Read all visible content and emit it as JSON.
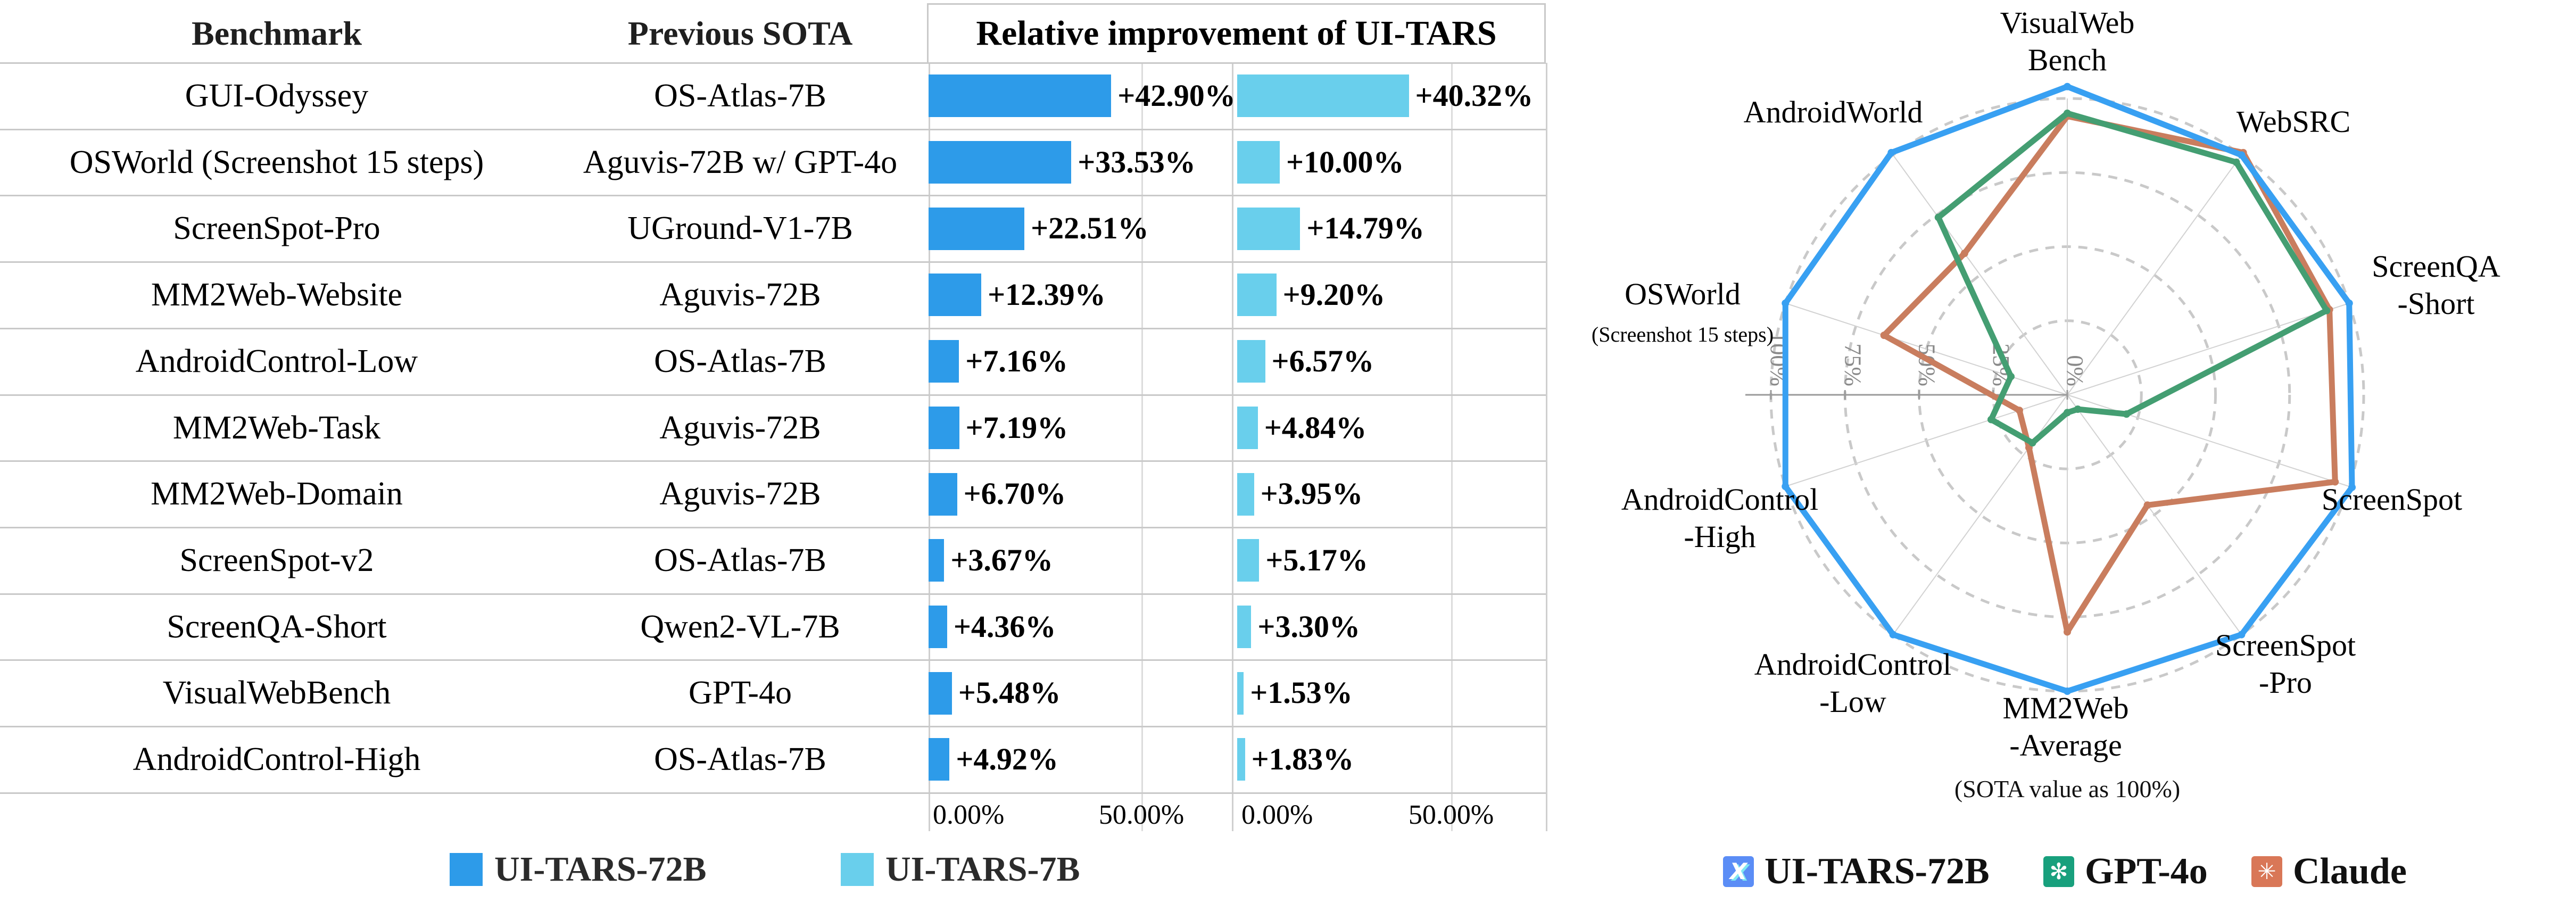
{
  "figure_title": "Relative improvement of UI-TARS",
  "left_table": {
    "headers": {
      "benchmark": "Benchmark",
      "previous_sota": "Previous SOTA",
      "improvement": "Relative improvement of UI-TARS"
    },
    "axis_tick_zero": "0.00%",
    "axis_tick_fifty": "50.00%",
    "legend": [
      {
        "label": "UI-TARS-72B",
        "color": "#2D9BE9"
      },
      {
        "label": "UI-TARS-7B",
        "color": "#69CFEC"
      }
    ]
  },
  "radar_panel": {
    "subtitle": "(SOTA value as 100%)",
    "tick_labels": [
      "100%",
      "75%",
      "50%",
      "25%",
      "0%"
    ],
    "legend": [
      {
        "label": "UI-TARS-72B",
        "color": "#5B8DF6",
        "icon": "uitars-logo",
        "glyph": "X"
      },
      {
        "label": "GPT-4o",
        "color": "#18A07D",
        "icon": "openai-logo",
        "glyph": "✻"
      },
      {
        "label": "Claude",
        "color": "#D97757",
        "icon": "claude-logo",
        "glyph": "✳"
      }
    ]
  },
  "chart_data": [
    {
      "type": "bar",
      "title": "Relative improvement of UI-TARS",
      "orientation": "horizontal",
      "xlim": [
        0,
        50
      ],
      "x_ticks": [
        "0.00%",
        "50.00%"
      ],
      "grid": true,
      "categories": [
        "GUI-Odyssey",
        "OSWorld (Screenshot 15 steps)",
        "ScreenSpot-Pro",
        "MM2Web-Website",
        "AndroidControl-Low",
        "MM2Web-Task",
        "MM2Web-Domain",
        "ScreenSpot-v2",
        "ScreenQA-Short",
        "VisualWebBench",
        "AndroidControl-High"
      ],
      "previous_sota": [
        "OS-Atlas-7B",
        "Aguvis-72B w/ GPT-4o",
        "UGround-V1-7B",
        "Aguvis-72B",
        "OS-Atlas-7B",
        "Aguvis-72B",
        "Aguvis-72B",
        "OS-Atlas-7B",
        "Qwen2-VL-7B",
        "GPT-4o",
        "OS-Atlas-7B"
      ],
      "series": [
        {
          "name": "UI-TARS-72B",
          "color": "#2D9BE9",
          "values": [
            42.9,
            33.53,
            22.51,
            12.39,
            7.16,
            7.19,
            6.7,
            3.67,
            4.36,
            5.48,
            4.92
          ],
          "labels": [
            "+42.90%",
            "+33.53%",
            "+22.51%",
            "+12.39%",
            "+7.16%",
            "+7.19%",
            "+6.70%",
            "+3.67%",
            "+4.36%",
            "+5.48%",
            "+4.92%"
          ]
        },
        {
          "name": "UI-TARS-7B",
          "color": "#69CFEC",
          "values": [
            40.32,
            10.0,
            14.79,
            9.2,
            6.57,
            4.84,
            3.95,
            5.17,
            3.3,
            1.53,
            1.83
          ],
          "labels": [
            "+40.32%",
            "+10.00%",
            "+14.79%",
            "+9.20%",
            "+6.57%",
            "+4.84%",
            "+3.95%",
            "+5.17%",
            "+3.30%",
            "+1.53%",
            "+1.83%"
          ]
        }
      ]
    },
    {
      "type": "radar",
      "subtitle": "(SOTA value as 100%)",
      "rlim": [
        0,
        110
      ],
      "radial_ticks": [
        0,
        25,
        50,
        75,
        100
      ],
      "categories": [
        "VisualWebBench",
        "WebSRC",
        "ScreenQA-Short",
        "ScreenSpot",
        "ScreenSpot-Pro",
        "MM2Web-Average",
        "AndroidControl-Low",
        "AndroidControl-High",
        "OSWorld (Screenshot 15 steps)",
        "AndroidWorld"
      ],
      "label_lines": [
        [
          "VisualWeb",
          "Bench"
        ],
        [
          "WebSRC"
        ],
        [
          "ScreenQA",
          "-Short"
        ],
        [
          "ScreenSpot"
        ],
        [
          "ScreenSpot",
          "-Pro"
        ],
        [
          "MM2Web",
          "-Average"
        ],
        [
          "AndroidControl",
          "-Low"
        ],
        [
          "AndroidControl",
          "-High"
        ],
        [
          "OSWorld",
          "(Screenshot 15 steps)"
        ],
        [
          "AndroidWorld"
        ]
      ],
      "series": [
        {
          "name": "Claude",
          "color": "#C97D5E",
          "values": [
            94,
            101,
            93,
            95,
            46,
            80,
            22,
            17,
            65,
            59
          ]
        },
        {
          "name": "GPT-4o",
          "color": "#449E72",
          "values": [
            95,
            97,
            92,
            21,
            6,
            6,
            20,
            27,
            20,
            74
          ]
        },
        {
          "name": "UI-TARS-72B",
          "color": "#38A0F2",
          "values": [
            104,
            100,
            100,
            101,
            100,
            100,
            100,
            100,
            100,
            101
          ]
        }
      ]
    }
  ]
}
